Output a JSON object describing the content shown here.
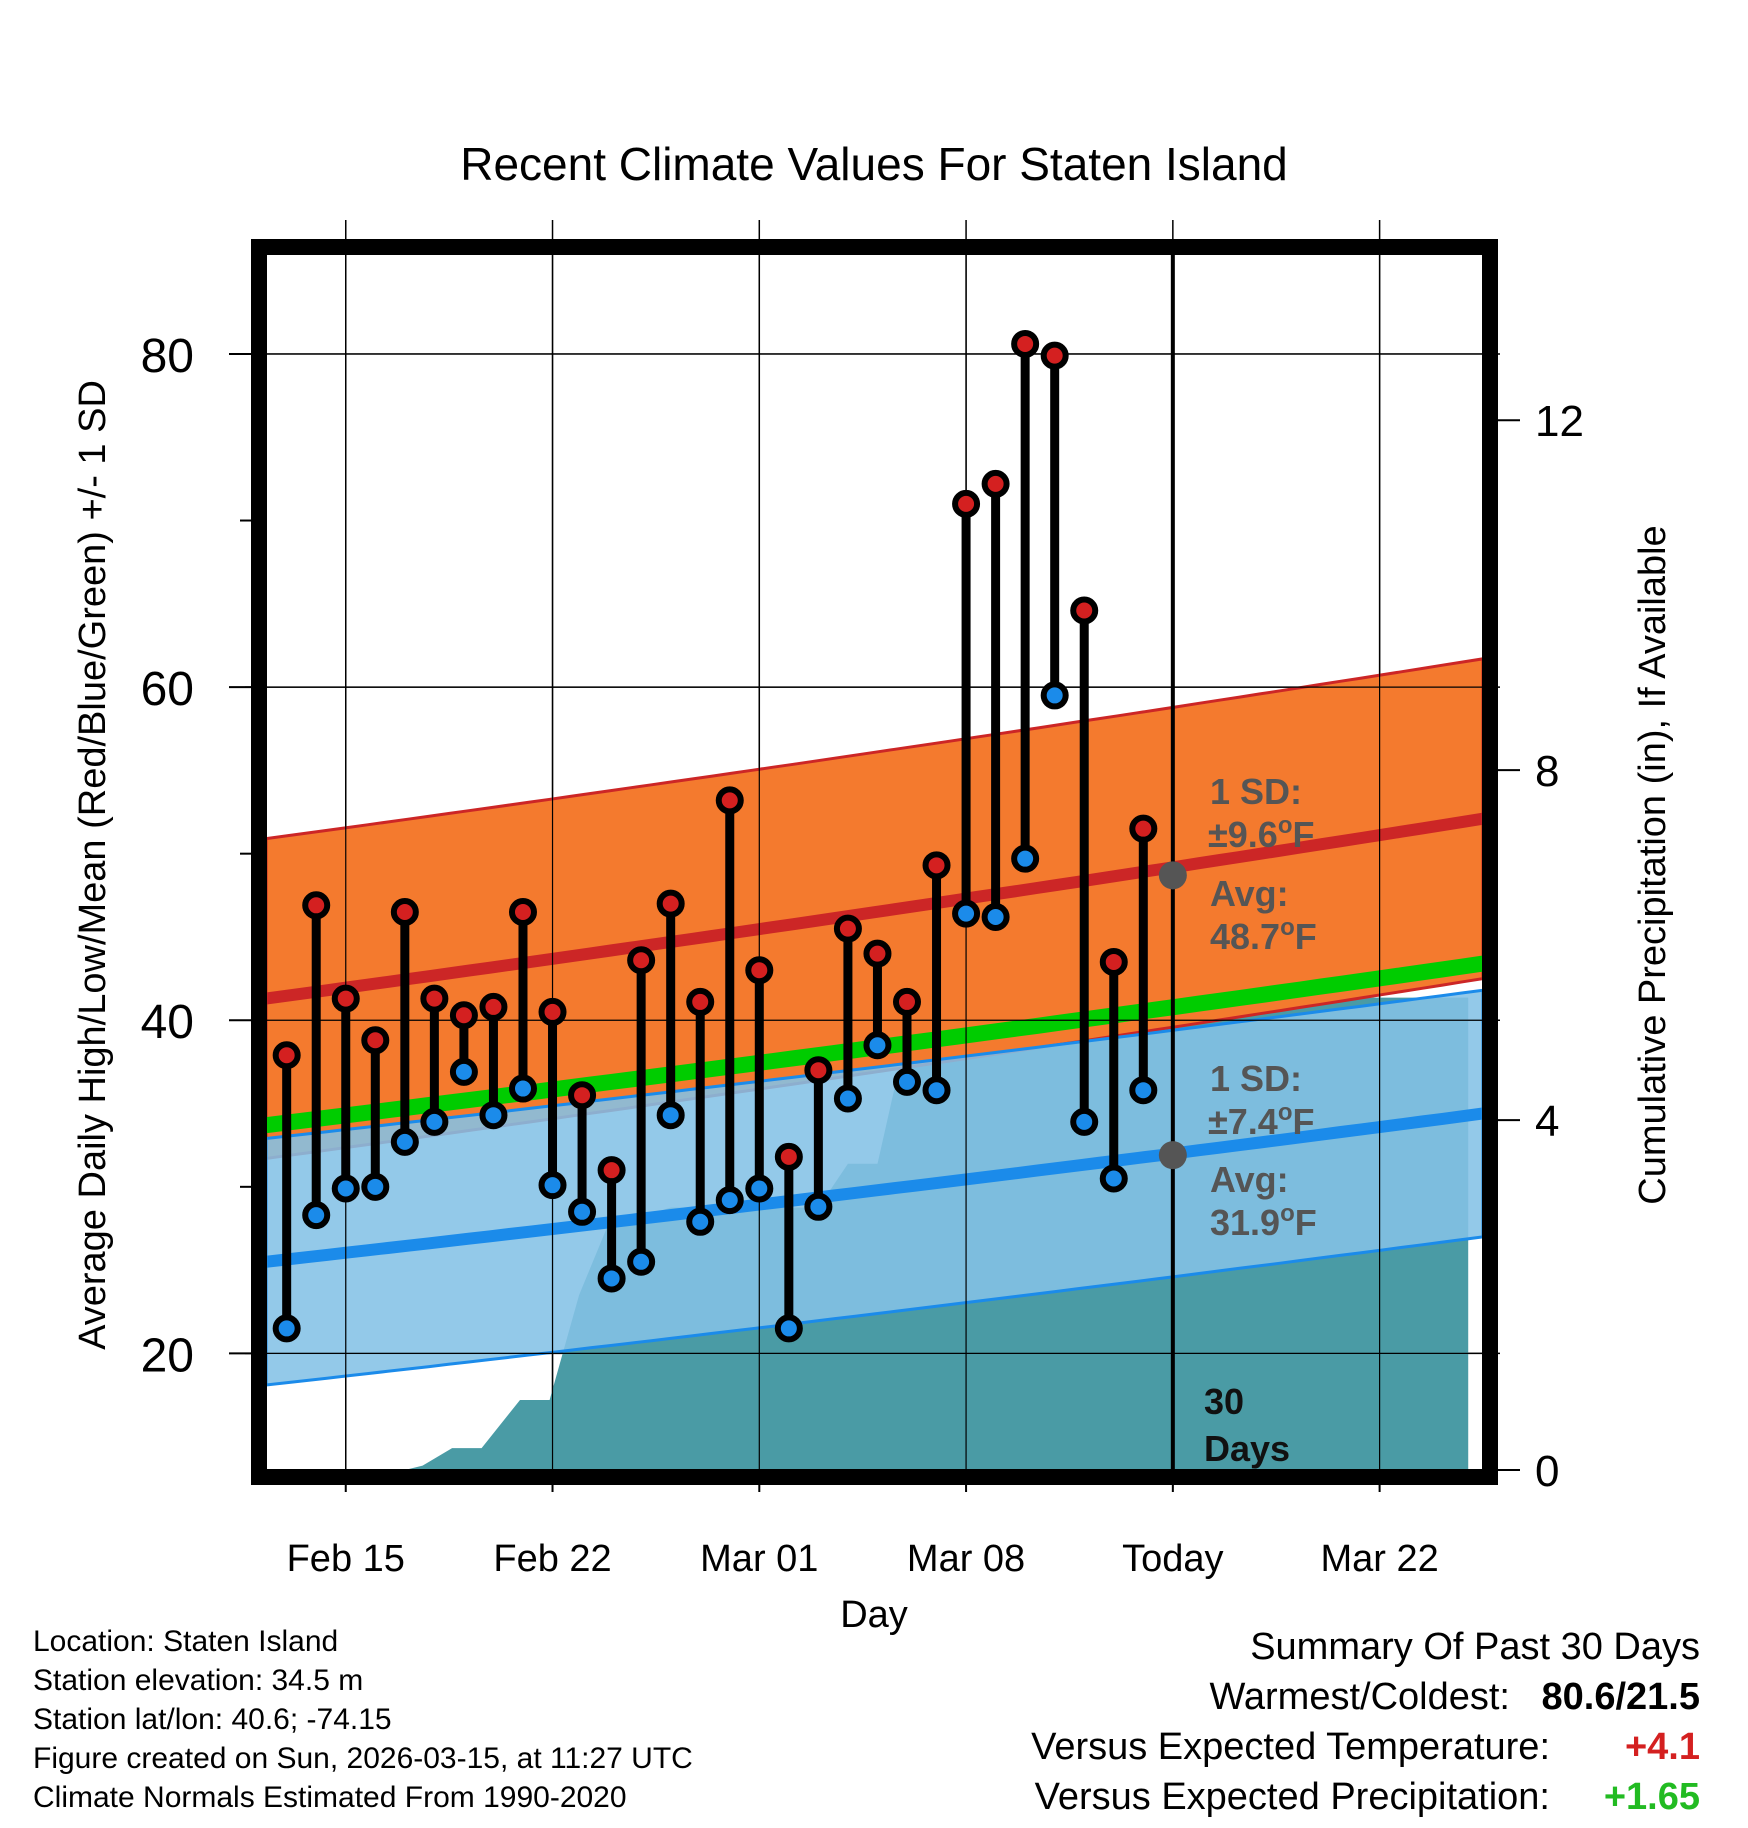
{
  "chart_data": {
    "type": "line",
    "title": "Recent Climate Values For Staten Island",
    "xlabel": "Day",
    "ylabel": "Average Daily High/Low/Mean (Red/Blue/Green) +/- 1 SD",
    "y2label": "Cumulative Precipitation (in), If Available",
    "x_tick_labels": [
      "Feb 15",
      "Feb 22",
      "Mar 01",
      "Mar 08",
      "Today",
      "Mar 22"
    ],
    "x_tick_days": [
      0,
      7,
      14,
      21,
      28,
      35
    ],
    "xlim": [
      -2.7,
      38.5
    ],
    "ylim": [
      13,
      86
    ],
    "y_ticks": [
      20,
      40,
      60,
      80
    ],
    "y_minor_ticks": [
      30,
      50,
      70
    ],
    "y2lim": [
      0,
      13.9
    ],
    "y2_ticks": [
      0,
      4,
      8,
      12
    ],
    "today_day": 28,
    "today_label": "30 Days",
    "normals": {
      "high_avg": [
        41.3,
        52.1
      ],
      "high_sd": 9.6,
      "low_avg": [
        25.5,
        34.4
      ],
      "low_sd": 7.4,
      "mean_avg": [
        33.7,
        43.4
      ],
      "high_avg_today": 48.7,
      "low_avg_today": 31.9
    },
    "annotations": {
      "high_sd_label": "1 SD:",
      "high_sd_value": "±9.6",
      "high_avg_label": "Avg:",
      "high_avg_value": "48.7",
      "low_sd_label": "1 SD:",
      "low_sd_value": "±7.4",
      "low_avg_label": "Avg:",
      "low_avg_value": "31.9",
      "degree": "o",
      "unit": "F"
    },
    "series": [
      {
        "name": "Daily High",
        "color": "#d42020",
        "days": [
          -2,
          -1,
          0,
          1,
          2,
          3,
          4,
          5,
          6,
          7,
          8,
          9,
          10,
          11,
          12,
          13,
          14,
          15,
          16,
          17,
          18,
          19,
          20,
          21,
          22,
          23,
          24,
          25,
          26,
          27
        ],
        "values": [
          37.9,
          46.9,
          41.3,
          38.8,
          46.5,
          41.3,
          40.3,
          40.8,
          46.5,
          40.5,
          35.5,
          31.0,
          43.6,
          47.0,
          41.1,
          53.2,
          43.0,
          31.8,
          37.0,
          45.5,
          44.0,
          41.1,
          49.3,
          71.0,
          72.2,
          80.6,
          79.9,
          64.6,
          43.5,
          51.5
        ]
      },
      {
        "name": "Daily Low",
        "color": "#1b8bea",
        "days": [
          -2,
          -1,
          0,
          1,
          2,
          3,
          4,
          5,
          6,
          7,
          8,
          9,
          10,
          11,
          12,
          13,
          14,
          15,
          16,
          17,
          18,
          19,
          20,
          21,
          22,
          23,
          24,
          25,
          26,
          27
        ],
        "values": [
          21.5,
          28.3,
          29.9,
          30.0,
          32.7,
          33.9,
          36.9,
          34.3,
          35.9,
          30.1,
          28.5,
          24.5,
          25.5,
          34.3,
          27.9,
          29.2,
          29.9,
          21.5,
          28.8,
          35.3,
          38.5,
          36.3,
          35.8,
          46.4,
          46.2,
          49.7,
          59.5,
          33.9,
          30.5,
          35.8
        ]
      },
      {
        "name": "Cumulative Precipitation",
        "color": "#4a9ba5",
        "days": [
          -2,
          2,
          2.6,
          3.6,
          4.6,
          5.9,
          6.9,
          7.9,
          9,
          10,
          11,
          16,
          17,
          18,
          19,
          20,
          21,
          22,
          23,
          24,
          25,
          26,
          27,
          29,
          30,
          38
        ],
        "values": [
          0,
          0,
          0.05,
          0.25,
          0.25,
          0.8,
          0.8,
          2,
          2.9,
          2.9,
          3,
          3,
          3.5,
          3.5,
          5,
          5.1,
          5.1,
          5.1,
          5.1,
          5.1,
          5.4,
          5.4,
          5.4,
          5.4,
          5.4,
          5.4
        ]
      }
    ],
    "colors": {
      "high_band": "#f47a2e",
      "high_line": "#cc2626",
      "low_band": "#84c2e6",
      "low_line": "#1b8bea",
      "mean_line": "#00cc00",
      "precip": "#4a9ba5",
      "annotation": "#555555"
    }
  },
  "metadata": {
    "location": "Location: Staten Island",
    "elevation": "Station elevation: 34.5 m",
    "latlon": "Station lat/lon: 40.6; -74.15",
    "created": "Figure created on Sun, 2026-03-15, at 11:27 UTC",
    "normals": "Climate Normals Estimated From 1990-2020"
  },
  "summary": {
    "title": "Summary Of Past 30 Days",
    "warmest_coldest_label": "Warmest/Coldest:",
    "warmest_coldest_value": "80.6/21.5",
    "temp_label": "Versus Expected Temperature:",
    "temp_value": "+4.1",
    "temp_color": "#d42020",
    "precip_label": "Versus Expected Precipitation:",
    "precip_value": "+1.65",
    "precip_color": "#22bb22"
  }
}
